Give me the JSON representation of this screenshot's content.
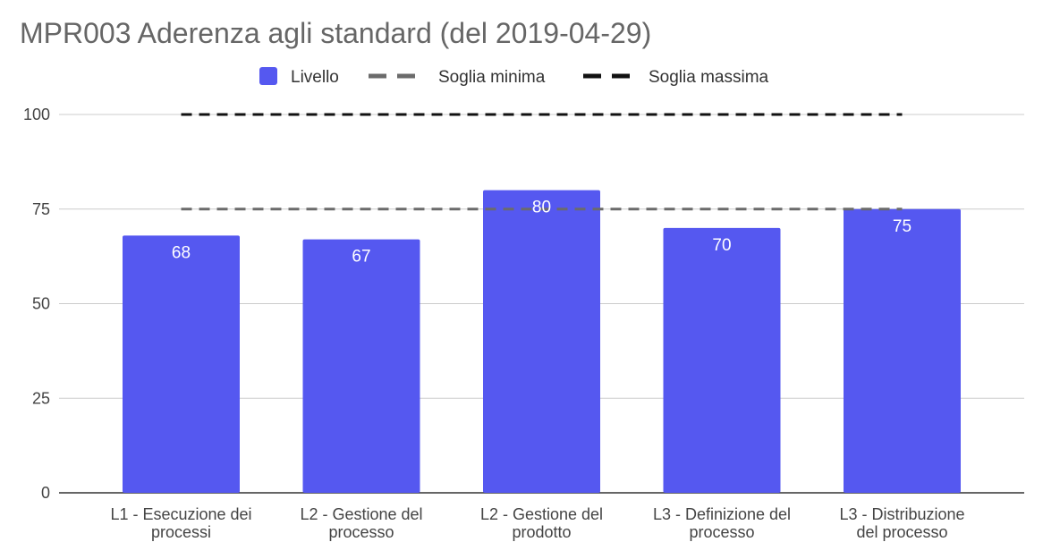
{
  "chart_data": {
    "type": "bar",
    "title": "MPR003 Aderenza agli standard (del 2019-04-29)",
    "categories": [
      [
        "L1 - Esecuzione dei",
        "processi"
      ],
      [
        "L2 - Gestione del",
        "processo"
      ],
      [
        "L2 - Gestione del",
        "prodotto"
      ],
      [
        "L3 - Definizione del",
        "processo"
      ],
      [
        "L3 - Distribuzione",
        "del processo"
      ]
    ],
    "series": [
      {
        "name": "Livello",
        "type": "bar",
        "color": "#5558f0",
        "values": [
          68,
          67,
          80,
          70,
          75
        ]
      },
      {
        "name": "Soglia minima",
        "type": "line",
        "style": "dashed",
        "color": "#6b6b6b",
        "values": [
          75,
          75,
          75,
          75,
          75
        ]
      },
      {
        "name": "Soglia massima",
        "type": "line",
        "style": "dashed",
        "color": "#111111",
        "values": [
          100,
          100,
          100,
          100,
          100
        ]
      }
    ],
    "xlabel": "",
    "ylabel": "",
    "ylim": [
      0,
      100
    ],
    "yticks": [
      0,
      25,
      50,
      75,
      100
    ],
    "grid": true,
    "legend_position": "top-center",
    "data_labels": true
  }
}
